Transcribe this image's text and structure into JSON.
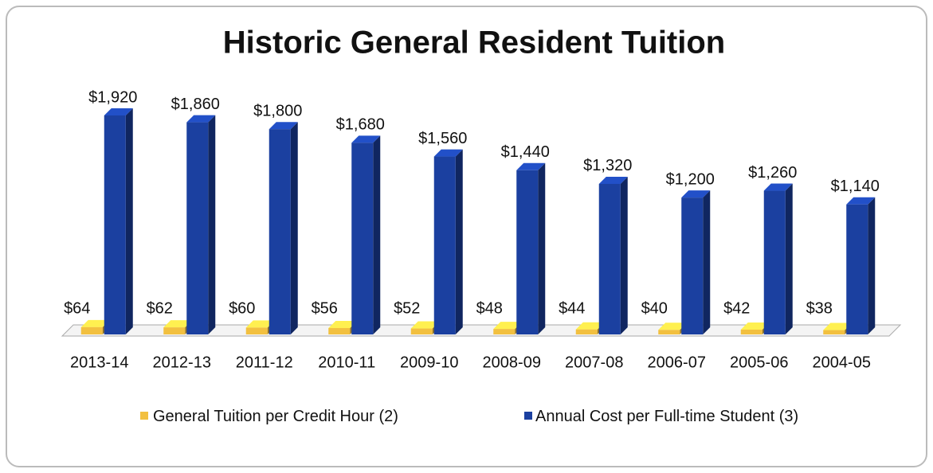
{
  "chart_data": {
    "type": "bar3d",
    "title": "Historic General Resident Tuition",
    "categories": [
      "2013-14",
      "2012-13",
      "2011-12",
      "2010-11",
      "2009-10",
      "2008-09",
      "2007-08",
      "2006-07",
      "2005-06",
      "2004-05"
    ],
    "series": [
      {
        "name": "General Tuition per Credit Hour (2)",
        "color": "#f2c040",
        "values": [
          64,
          62,
          60,
          56,
          52,
          48,
          44,
          40,
          42,
          38
        ],
        "value_labels": [
          "$64",
          "$62",
          "$60",
          "$56",
          "$52",
          "$48",
          "$44",
          "$40",
          "$42",
          "$38"
        ]
      },
      {
        "name": "Annual Cost per Full-time Student (3)",
        "color": "#1b40a0",
        "values": [
          1920,
          1860,
          1800,
          1680,
          1560,
          1440,
          1320,
          1200,
          1260,
          1140
        ],
        "value_labels": [
          "$1,920",
          "$1,860",
          "$1,800",
          "$1,680",
          "$1,560",
          "$1,440",
          "$1,320",
          "$1,200",
          "$1,260",
          "$1,140"
        ]
      }
    ],
    "legend": "bottom"
  }
}
